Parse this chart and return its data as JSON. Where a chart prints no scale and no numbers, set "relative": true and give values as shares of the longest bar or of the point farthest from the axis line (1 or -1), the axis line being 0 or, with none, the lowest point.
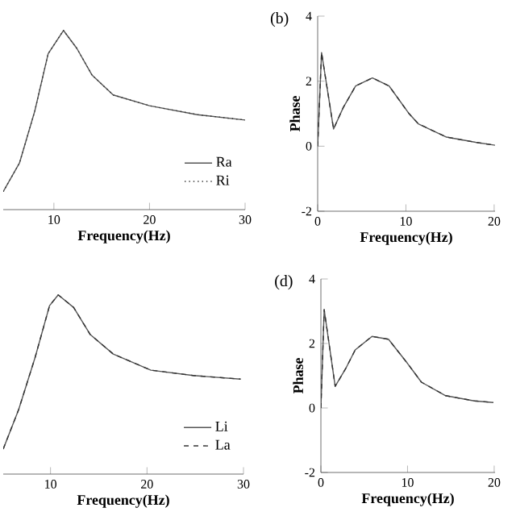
{
  "chart_data": [
    {
      "type": "line",
      "relative": true,
      "xlabel": "Frequency(Hz)",
      "xlim": [
        4.7,
        30
      ],
      "xticks": [
        10,
        20,
        30
      ],
      "legend": "bottom right",
      "x": [
        4.7,
        6.4,
        8.0,
        9.4,
        11.0,
        12.4,
        14.0,
        16.2,
        20,
        25,
        30
      ],
      "series": [
        {
          "name": "Ra",
          "color": "#555555",
          "line_style": "solid",
          "values": [
            0.1,
            0.26,
            0.55,
            0.87,
            1.0,
            0.9,
            0.75,
            0.64,
            0.58,
            0.53,
            0.5
          ]
        },
        {
          "name": "Ri",
          "color": "#333333",
          "line_style": "dotted",
          "values": [
            0.1,
            0.26,
            0.55,
            0.87,
            1.0,
            0.9,
            0.75,
            0.64,
            0.58,
            0.53,
            0.5
          ]
        }
      ]
    },
    {
      "type": "line",
      "title": "(b)",
      "xlabel": "Frequency(Hz)",
      "ylabel": "Phase",
      "xlim": [
        0,
        20.1
      ],
      "xticks": [
        0,
        10,
        20
      ],
      "ylim": [
        -2,
        4
      ],
      "yticks": [
        -2,
        0,
        2,
        4
      ],
      "x": [
        0,
        0.44,
        1.8,
        2.9,
        4.3,
        6.2,
        8.1,
        10.3,
        11.4,
        14.6,
        17.9,
        20.1
      ],
      "series": [
        {
          "color": "#555555",
          "line_style": "solid",
          "values": [
            0,
            2.88,
            0.53,
            1.19,
            1.85,
            2.1,
            1.85,
            1.02,
            0.69,
            0.28,
            0.12,
            0.03
          ]
        },
        {
          "color": "#333333",
          "line_style": "dashed",
          "values": [
            0,
            2.88,
            0.53,
            1.19,
            1.85,
            2.1,
            1.85,
            1.02,
            0.69,
            0.28,
            0.12,
            0.03
          ]
        }
      ]
    },
    {
      "type": "line",
      "relative": true,
      "xlabel": "Frequency(Hz)",
      "xlim": [
        5.1,
        30
      ],
      "xticks": [
        10,
        20,
        30
      ],
      "legend": "bottom right",
      "x": [
        5.1,
        6.7,
        8.4,
        9.9,
        10.8,
        12.4,
        14.1,
        16.5,
        20.4,
        24.8,
        29.7
      ],
      "series": [
        {
          "name": "Li",
          "color": "#555555",
          "line_style": "solid",
          "values": [
            0.14,
            0.36,
            0.65,
            0.94,
            1.0,
            0.93,
            0.78,
            0.67,
            0.58,
            0.55,
            0.53
          ]
        },
        {
          "name": "La",
          "color": "#333333",
          "line_style": "dashed",
          "values": [
            0.14,
            0.36,
            0.65,
            0.94,
            1.0,
            0.93,
            0.78,
            0.67,
            0.58,
            0.55,
            0.53
          ]
        }
      ]
    },
    {
      "type": "line",
      "title": "(d)",
      "xlabel": "Frequency(Hz)",
      "ylabel": "Phase",
      "xlim": [
        0,
        20.1
      ],
      "xticks": [
        0,
        10,
        20
      ],
      "ylim": [
        -2,
        4
      ],
      "yticks": [
        -2,
        0,
        2,
        4
      ],
      "x": [
        0,
        0.38,
        1.65,
        2.86,
        3.96,
        5.9,
        7.8,
        10,
        11.6,
        14.4,
        17.7,
        19.9
      ],
      "series": [
        {
          "color": "#555555",
          "line_style": "solid",
          "values": [
            0,
            3.05,
            0.67,
            1.22,
            1.8,
            2.22,
            2.13,
            1.38,
            0.8,
            0.38,
            0.22,
            0.17
          ]
        },
        {
          "color": "#333333",
          "line_style": "dashed",
          "values": [
            0,
            3.05,
            0.67,
            1.22,
            1.8,
            2.22,
            2.13,
            1.38,
            0.8,
            0.38,
            0.22,
            0.17
          ]
        }
      ]
    }
  ]
}
